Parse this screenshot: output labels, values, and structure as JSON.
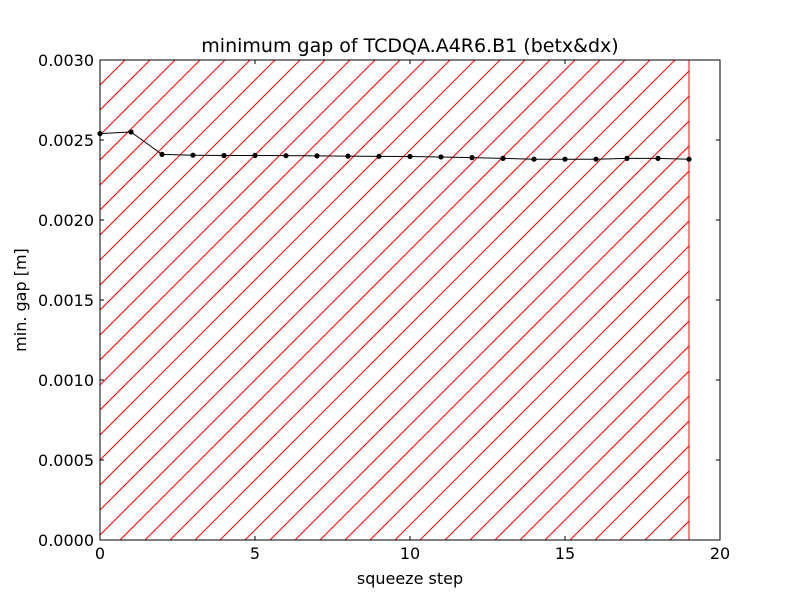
{
  "chart_data": {
    "type": "line",
    "title": "minimum gap of TCDQA.A4R6.B1 (betx&dx)",
    "xlabel": "squeeze step",
    "ylabel": "min. gap [m]",
    "xlim": [
      0,
      20
    ],
    "ylim": [
      0,
      0.003
    ],
    "xticks": [
      0,
      5,
      10,
      15,
      20
    ],
    "xtick_labels": [
      "0",
      "5",
      "10",
      "15",
      "20"
    ],
    "yticks": [
      0,
      0.0005,
      0.001,
      0.0015,
      0.002,
      0.0025,
      0.003
    ],
    "ytick_labels": [
      "0.0000",
      "0.0005",
      "0.0010",
      "0.0015",
      "0.0020",
      "0.0025",
      "0.0030"
    ],
    "grid": false,
    "hatched_region": {
      "x_from": 0,
      "x_to": 19,
      "color": "#ff0000",
      "pattern": "diagonal-hatch"
    },
    "series": [
      {
        "color": "#000000",
        "marker": "circle",
        "x": [
          0,
          1,
          2,
          3,
          4,
          5,
          6,
          7,
          8,
          9,
          10,
          11,
          12,
          13,
          14,
          15,
          16,
          17,
          18,
          19
        ],
        "y": [
          0.00254,
          0.00255,
          0.00241,
          0.002405,
          0.002403,
          0.002403,
          0.002402,
          0.002401,
          0.002399,
          0.002398,
          0.002397,
          0.002394,
          0.00239,
          0.002385,
          0.00238,
          0.00238,
          0.00238,
          0.002385,
          0.002385,
          0.00238
        ]
      }
    ]
  }
}
